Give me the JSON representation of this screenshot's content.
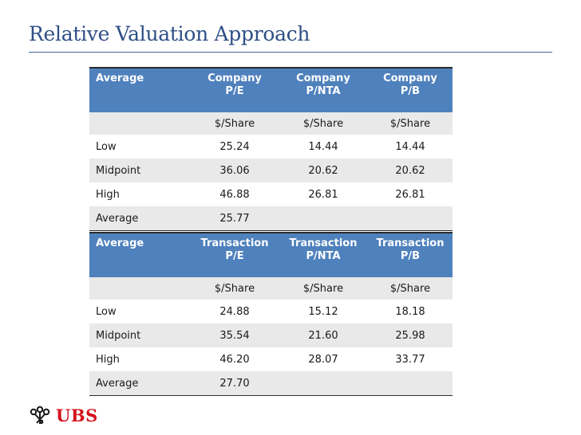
{
  "slide": {
    "title": "Relative Valuation Approach"
  },
  "company_table": {
    "headers": [
      "Average",
      "Company\nP/E",
      "Company\nP/NTA",
      "Company\nP/B"
    ],
    "units": [
      "",
      "$/Share",
      "$/Share",
      "$/Share"
    ],
    "rows": [
      [
        "Low",
        "25.24",
        "14.44",
        "14.44"
      ],
      [
        "Midpoint",
        "36.06",
        "20.62",
        "20.62"
      ],
      [
        "High",
        "46.88",
        "26.81",
        "26.81"
      ],
      [
        "Average",
        "25.77",
        "",
        ""
      ]
    ]
  },
  "transaction_table": {
    "headers": [
      "Average",
      "Transaction\nP/E",
      "Transaction\nP/NTA",
      "Transaction\nP/B"
    ],
    "units": [
      "",
      "$/Share",
      "$/Share",
      "$/Share"
    ],
    "rows": [
      [
        "Low",
        "24.88",
        "15.12",
        "18.18"
      ],
      [
        "Midpoint",
        "35.54",
        "21.60",
        "25.98"
      ],
      [
        "High",
        "46.20",
        "28.07",
        "33.77"
      ],
      [
        "Average",
        "27.70",
        "",
        ""
      ]
    ]
  },
  "logo": {
    "text": "UBS",
    "color": "#d4121b"
  },
  "colors": {
    "header": "#4f81bd",
    "title": "#2e4f86",
    "shade": "#e9e9e9"
  }
}
